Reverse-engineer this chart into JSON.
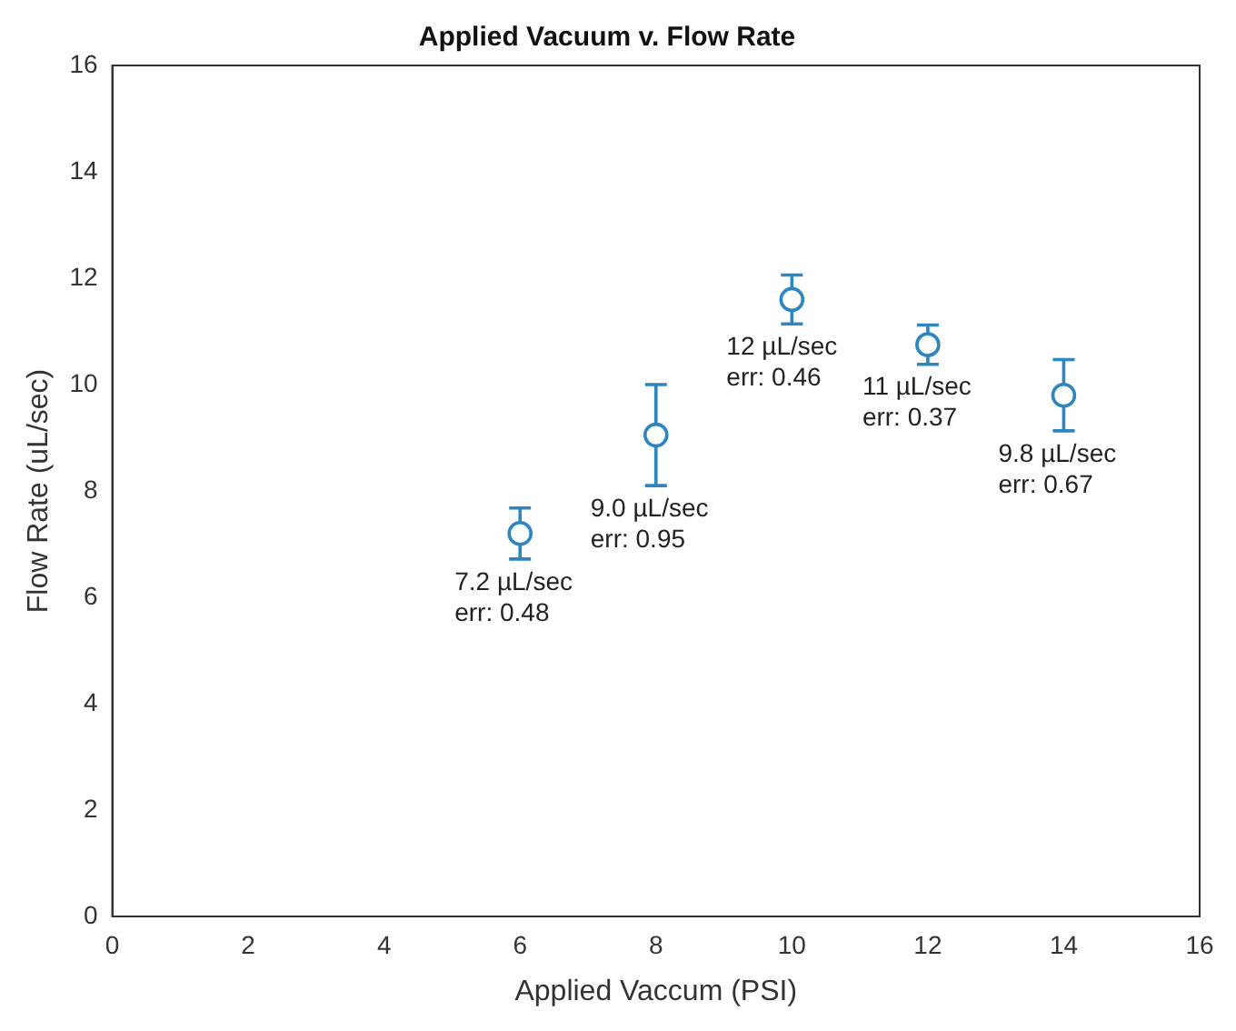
{
  "chart_data": {
    "type": "scatter",
    "title": "Applied Vacuum v. Flow Rate",
    "xlabel": "Applied Vaccum (PSI)",
    "ylabel": "Flow Rate (uL/sec)",
    "x": [
      6,
      8,
      10,
      12,
      14
    ],
    "series": [
      {
        "color": "#2e86c1",
        "values": [
          7.2,
          9.05,
          11.6,
          10.75,
          9.8
        ],
        "errors": [
          0.48,
          0.95,
          0.46,
          0.37,
          0.67
        ]
      }
    ],
    "marker": "circle",
    "grid": false,
    "legend": false,
    "xlim": [
      0,
      16
    ],
    "xticks": [
      0,
      2,
      4,
      6,
      8,
      10,
      12,
      14,
      16
    ],
    "ylim": [
      0,
      16
    ],
    "yticks": [
      0,
      2,
      4,
      6,
      8,
      10,
      12,
      14,
      16
    ],
    "annotations": [
      {
        "text": "7.2 µL/sec\nerr: 0.48",
        "x": 6,
        "y": 7.2
      },
      {
        "text": "9.0 µL/sec\nerr: 0.95",
        "x": 8,
        "y": 9.05
      },
      {
        "text": "12 µL/sec\nerr: 0.46",
        "x": 10,
        "y": 11.6
      },
      {
        "text": "11 µL/sec\nerr: 0.37",
        "x": 12,
        "y": 10.75
      },
      {
        "text": "9.8 µL/sec\nerr: 0.67",
        "x": 14,
        "y": 9.8
      }
    ]
  }
}
